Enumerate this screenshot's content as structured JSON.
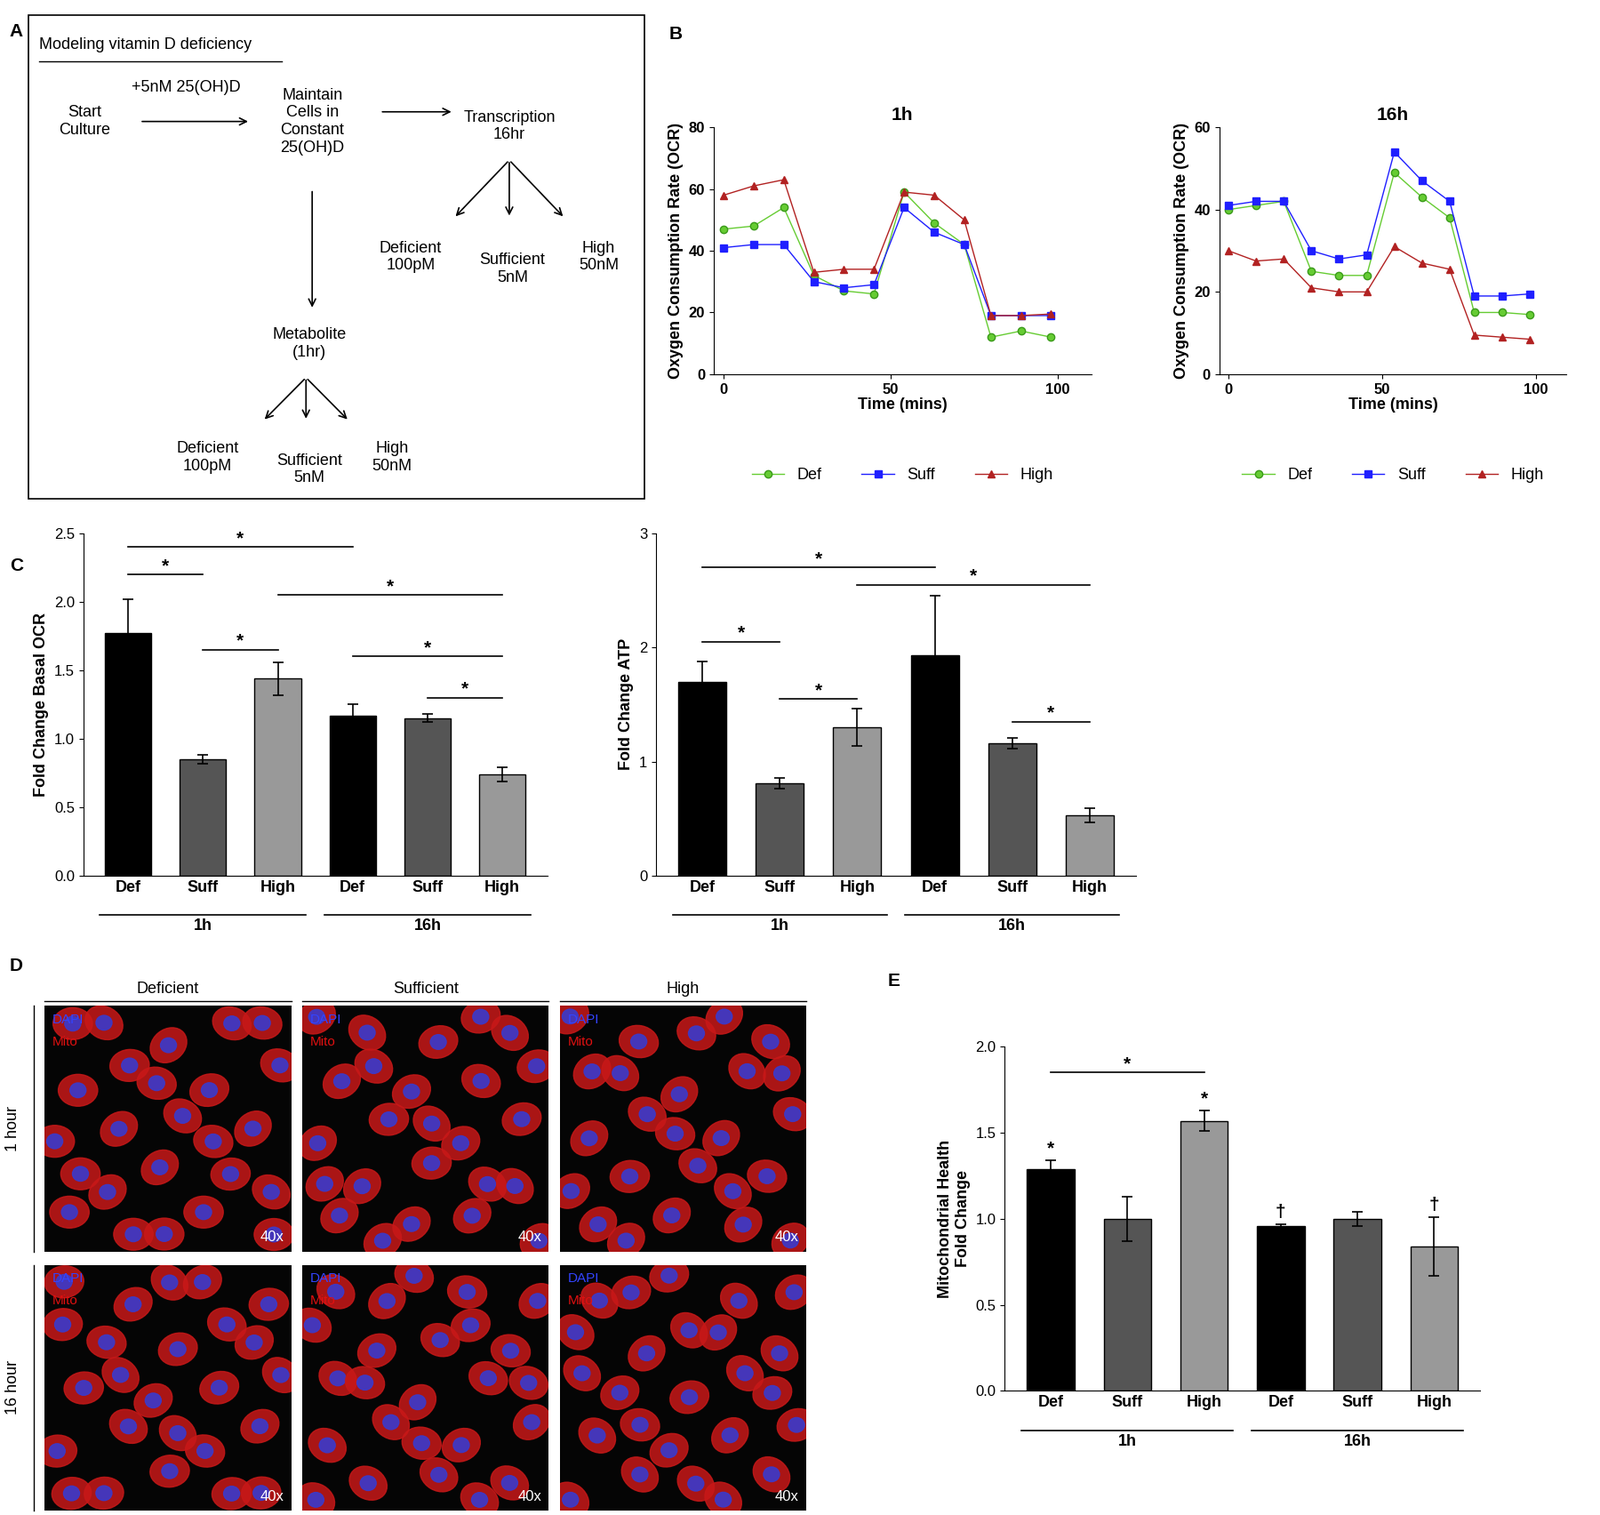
{
  "panel_labels": [
    "A",
    "B",
    "C",
    "D",
    "E"
  ],
  "diagram": {
    "title": "Modeling vitamin D deficiency",
    "edge_label": "+5nM 25(OH)D",
    "nodes": [
      "Start\nCulture",
      "Maintain\nCells in\nConstant\n25(OH)D",
      "Transcription\n16hr",
      "Deficient\n100pM",
      "Sufficient\n5nM",
      "High\n50nM",
      "Metabolite\n(1hr)",
      "Deficient\n100pM",
      "Sufficient\n5nM",
      "High\n50nM"
    ]
  },
  "images": {
    "columns": [
      "Deficient",
      "Sufficient",
      "High"
    ],
    "rows": [
      "1 hour",
      "16 hour"
    ],
    "stains": [
      {
        "name": "DAPI",
        "color": "#3344ff"
      },
      {
        "name": "Mito",
        "color": "#e01010"
      }
    ],
    "magnification": "40x"
  },
  "chart_data": [
    {
      "type": "line",
      "title": "1h",
      "x_label": "Time (mins)",
      "y_label": "Oxygen Consumption Rate (OCR)",
      "x": [
        0,
        9,
        18,
        27,
        36,
        45,
        54,
        63,
        72,
        80,
        89,
        98
      ],
      "xlim": [
        -3,
        110
      ],
      "xticks": [
        0,
        50,
        100
      ],
      "ylim": [
        0,
        80
      ],
      "yticks": [
        0,
        20,
        40,
        60,
        80
      ],
      "legend": "bottom",
      "series": [
        {
          "name": "Def",
          "color": "#66cc33",
          "marker": "o",
          "values": [
            47,
            48,
            54,
            32,
            27,
            26,
            59,
            49,
            42,
            12,
            14,
            12
          ]
        },
        {
          "name": "Suff",
          "color": "#1f1fff",
          "marker": "s",
          "values": [
            41,
            42,
            42,
            30,
            28,
            29,
            54,
            46,
            42,
            19,
            19,
            19
          ]
        },
        {
          "name": "High",
          "color": "#b22222",
          "marker": "^",
          "values": [
            58,
            61,
            63,
            33,
            34,
            34,
            59,
            58,
            50,
            19,
            19,
            19.5
          ]
        }
      ]
    },
    {
      "type": "line",
      "title": "16h",
      "x_label": "Time (mins)",
      "y_label": "Oxygen Consumption Rate (OCR)",
      "x": [
        0,
        9,
        18,
        27,
        36,
        45,
        54,
        63,
        72,
        80,
        89,
        98
      ],
      "xlim": [
        -3,
        110
      ],
      "xticks": [
        0,
        50,
        100
      ],
      "ylim": [
        0,
        60
      ],
      "yticks": [
        0,
        20,
        40,
        60
      ],
      "legend": "bottom",
      "series": [
        {
          "name": "Def",
          "color": "#66cc33",
          "marker": "o",
          "values": [
            40,
            41,
            42,
            25,
            24,
            24,
            49,
            43,
            38,
            15,
            15,
            14.5
          ]
        },
        {
          "name": "Suff",
          "color": "#1f1fff",
          "marker": "s",
          "values": [
            41,
            42,
            42,
            30,
            28,
            29,
            54,
            47,
            42,
            19,
            19,
            19.5
          ]
        },
        {
          "name": "High",
          "color": "#b22222",
          "marker": "^",
          "values": [
            30,
            27.5,
            28,
            21,
            20,
            20,
            31,
            27,
            25.5,
            9.5,
            9,
            8.5
          ]
        }
      ]
    },
    {
      "type": "bar",
      "y_label": "Fold Change Basal OCR",
      "categories": [
        "Def",
        "Suff",
        "High",
        "Def",
        "Suff",
        "High"
      ],
      "x_groups": [
        "1h",
        "16h"
      ],
      "values": [
        1.77,
        0.85,
        1.44,
        1.17,
        1.15,
        0.74
      ],
      "errors": [
        0.25,
        0.03,
        0.12,
        0.08,
        0.03,
        0.05
      ],
      "colors": [
        "#000000",
        "#555555",
        "#999999",
        "#000000",
        "#555555",
        "#999999"
      ],
      "ylim": [
        0,
        2.5
      ],
      "yticks": [
        {
          "value": 0,
          "label": "0.0"
        },
        {
          "value": 0.5,
          "label": "0.5"
        },
        {
          "value": 1,
          "label": "1.0"
        },
        {
          "value": 1.5,
          "label": "1.5"
        },
        {
          "value": 2,
          "label": "2.0"
        },
        {
          "value": 2.5,
          "label": "2.5"
        }
      ],
      "annotations": [
        {
          "x1": 0,
          "x2": 1,
          "y": 2.2,
          "text": "*"
        },
        {
          "x1": 0,
          "x2": 3,
          "y": 2.4,
          "text": "*"
        },
        {
          "x1": 1,
          "x2": 2,
          "y": 1.65,
          "text": "*"
        },
        {
          "x1": 2,
          "x2": 5,
          "y": 2.05,
          "text": "*"
        },
        {
          "x1": 3,
          "x2": 5,
          "y": 1.6,
          "text": "*"
        },
        {
          "x1": 4,
          "x2": 5,
          "y": 1.3,
          "text": "*"
        }
      ]
    },
    {
      "type": "bar",
      "y_label": "Fold Change ATP",
      "categories": [
        "Def",
        "Suff",
        "High",
        "Def",
        "Suff",
        "High"
      ],
      "x_groups": [
        "1h",
        "16h"
      ],
      "values": [
        1.7,
        0.81,
        1.3,
        1.93,
        1.16,
        0.53
      ],
      "errors": [
        0.18,
        0.05,
        0.16,
        0.52,
        0.05,
        0.06
      ],
      "colors": [
        "#000000",
        "#555555",
        "#999999",
        "#000000",
        "#555555",
        "#999999"
      ],
      "ylim": [
        0,
        3
      ],
      "yticks": [
        0,
        1,
        2,
        3
      ],
      "annotations": [
        {
          "x1": 0,
          "x2": 1,
          "y": 2.05,
          "text": "*"
        },
        {
          "x1": 1,
          "x2": 2,
          "y": 1.55,
          "text": "*"
        },
        {
          "x1": 0,
          "x2": 3,
          "y": 2.7,
          "text": "*"
        },
        {
          "x1": 2,
          "x2": 5,
          "y": 2.55,
          "text": "*"
        },
        {
          "x1": 4,
          "x2": 5,
          "y": 1.35,
          "text": "*"
        }
      ]
    },
    {
      "type": "bar",
      "y_label": "Mitochondrial Health\nFold Change",
      "categories": [
        "Def",
        "Suff",
        "High",
        "Def",
        "Suff",
        "High"
      ],
      "x_groups": [
        "1h",
        "16h"
      ],
      "values": [
        1.29,
        1.0,
        1.57,
        0.96,
        1.0,
        0.84
      ],
      "errors": [
        0.05,
        0.13,
        0.06,
        0.01,
        0.04,
        0.17
      ],
      "colors": [
        "#000000",
        "#555555",
        "#999999",
        "#000000",
        "#555555",
        "#999999"
      ],
      "ylim": [
        0,
        2
      ],
      "yticks": [
        {
          "value": 0,
          "label": "0.0"
        },
        {
          "value": 0.5,
          "label": "0.5"
        },
        {
          "value": 1,
          "label": "1.0"
        },
        {
          "value": 1.5,
          "label": "1.5"
        },
        {
          "value": 2,
          "label": "2.0"
        }
      ],
      "annotations": [
        {
          "x1": 0,
          "x2": 2,
          "y": 1.85,
          "text": "*"
        },
        {
          "x1": 0,
          "x2": 0,
          "y": 1.36,
          "text": "*"
        },
        {
          "x1": 2,
          "x2": 2,
          "y": 1.65,
          "text": "*"
        },
        {
          "x1": 3,
          "x2": 3,
          "y": 0.99,
          "text": "†"
        },
        {
          "x1": 5,
          "x2": 5,
          "y": 1.03,
          "text": "†"
        }
      ]
    }
  ]
}
